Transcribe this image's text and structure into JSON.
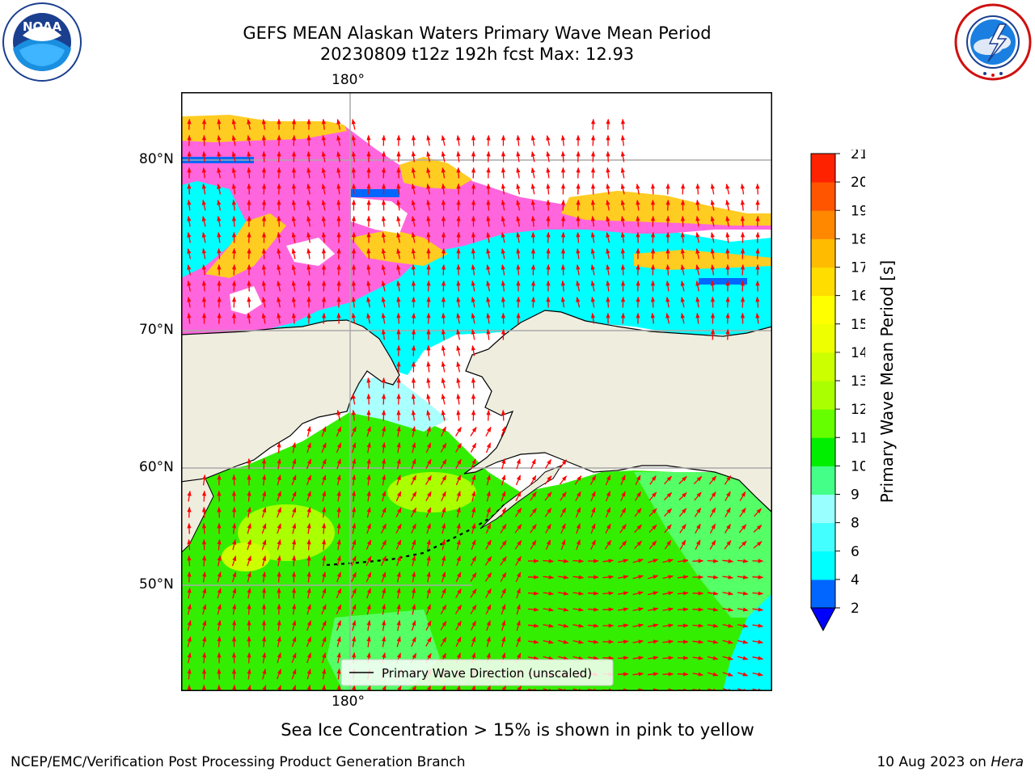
{
  "header": {
    "title_line1": "GEFS MEAN Alaskan Waters Primary Wave Mean Period",
    "title_line2": "20230809 t12z 192h fcst   Max: 12.93"
  },
  "logos": {
    "left": {
      "icon": "noaa-logo-icon",
      "text": "NOAA"
    },
    "right": {
      "icon": "national-weather-service-logo-icon"
    }
  },
  "map": {
    "lon_label_top": "180°",
    "lon_label_bottom": "180°",
    "lat_labels": [
      "80°N",
      "70°N",
      "60°N",
      "50°N"
    ],
    "legend_text": "Primary Wave Direction (unscaled)",
    "colors": {
      "land": "#efedde",
      "ocean_green": "#33ee00",
      "ocean_cyan": "#00ffff",
      "ice_pink": "#ff66dd",
      "ice_yellow": "#ffcc22",
      "arrow": "#ff0000"
    }
  },
  "colorbar": {
    "label": "Primary Wave Mean Period [s]",
    "ticks": [
      "2",
      "4",
      "6",
      "8",
      "9",
      "10",
      "11",
      "12",
      "13",
      "14",
      "15",
      "16",
      "17",
      "18",
      "19",
      "20",
      "21"
    ],
    "colors": [
      "#0066ff",
      "#00ffff",
      "#44ffff",
      "#99ffff",
      "#44ff88",
      "#00ee00",
      "#66ff00",
      "#aaff00",
      "#ccff00",
      "#eeff00",
      "#ffff00",
      "#ffdd00",
      "#ffbb00",
      "#ff8800",
      "#ff5500",
      "#ff2200"
    ],
    "extend_color": "#0000ff"
  },
  "note": "Sea Ice Concentration > 15% is shown in pink to yellow",
  "footer": {
    "left": "NCEP/EMC/Verification Post Processing Product Generation Branch",
    "right_date": "10 Aug 2023 on ",
    "right_host": "Hera"
  }
}
